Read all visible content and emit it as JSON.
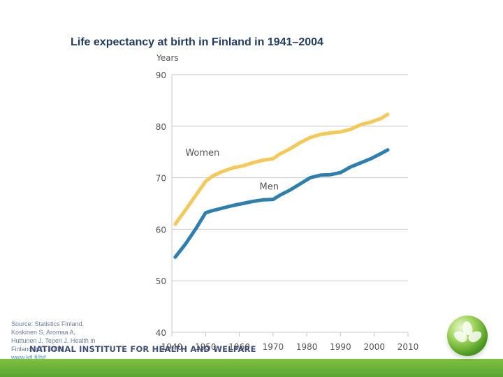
{
  "slide": {
    "title": "Life expectancy at birth in Finland in 1941–2004",
    "source_lines": [
      "Source: Statistics Finland.",
      "Koskinen S, Aromaa A,",
      "Huttunen J, Teperi J. Health in",
      "Finland. KTL 2006."
    ],
    "source_url": "www.ktl.fi/hif",
    "institute": "NATIONAL INSTITUTE FOR HEALTH AND WELFARE",
    "colors": {
      "title": "#1f3a5f",
      "bar": "#6cb33f",
      "women": "#f5c85a",
      "men": "#2e7fad"
    },
    "logo_icon": "globe-leaf-icon"
  },
  "chart_data": {
    "type": "line",
    "ylabel": "Years",
    "xlim": [
      1940,
      2010
    ],
    "ylim": [
      40,
      90
    ],
    "x_ticks": [
      1940,
      1950,
      1960,
      1970,
      1980,
      1990,
      2000,
      2010
    ],
    "y_ticks": [
      40,
      50,
      60,
      70,
      80,
      90
    ],
    "grid": "horizontal",
    "series": [
      {
        "name": "Women",
        "color": "#f5c85a",
        "points": [
          [
            1941,
            61.0
          ],
          [
            1944,
            63.7
          ],
          [
            1947,
            66.5
          ],
          [
            1950,
            69.3
          ],
          [
            1952,
            70.3
          ],
          [
            1955,
            71.2
          ],
          [
            1958,
            71.9
          ],
          [
            1961,
            72.3
          ],
          [
            1964,
            72.9
          ],
          [
            1967,
            73.4
          ],
          [
            1970,
            73.7
          ],
          [
            1972,
            74.6
          ],
          [
            1975,
            75.6
          ],
          [
            1978,
            76.8
          ],
          [
            1981,
            77.8
          ],
          [
            1984,
            78.4
          ],
          [
            1987,
            78.7
          ],
          [
            1990,
            78.9
          ],
          [
            1993,
            79.4
          ],
          [
            1996,
            80.3
          ],
          [
            1999,
            80.8
          ],
          [
            2002,
            81.5
          ],
          [
            2004,
            82.3
          ]
        ]
      },
      {
        "name": "Men",
        "color": "#2e7fad",
        "points": [
          [
            1941,
            54.6
          ],
          [
            1944,
            57.1
          ],
          [
            1947,
            60.0
          ],
          [
            1950,
            63.2
          ],
          [
            1952,
            63.6
          ],
          [
            1955,
            64.1
          ],
          [
            1958,
            64.6
          ],
          [
            1961,
            65.0
          ],
          [
            1964,
            65.4
          ],
          [
            1967,
            65.7
          ],
          [
            1970,
            65.8
          ],
          [
            1972,
            66.6
          ],
          [
            1975,
            67.6
          ],
          [
            1978,
            68.8
          ],
          [
            1981,
            70.0
          ],
          [
            1984,
            70.5
          ],
          [
            1987,
            70.6
          ],
          [
            1990,
            71.0
          ],
          [
            1993,
            72.1
          ],
          [
            1996,
            72.9
          ],
          [
            1999,
            73.7
          ],
          [
            2002,
            74.7
          ],
          [
            2004,
            75.4
          ]
        ]
      }
    ],
    "series_labels": [
      {
        "text": "Women",
        "x": 1944,
        "y": 74.3
      },
      {
        "text": "Men",
        "x": 1966,
        "y": 67.7
      }
    ]
  }
}
